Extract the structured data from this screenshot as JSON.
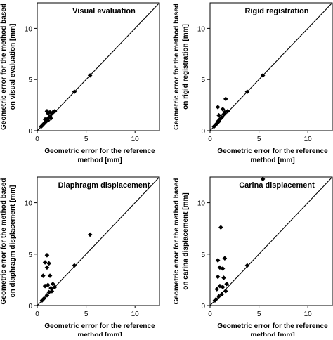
{
  "chart_data": [
    {
      "type": "scatter",
      "title": "Visual evaluation",
      "xlabel": [
        "Geometric error for the reference",
        "method [mm]"
      ],
      "ylabel": [
        "Geometric error for the method based",
        "on visual evaluation [mm]"
      ],
      "xlim": [
        0,
        12.5
      ],
      "ylim": [
        0,
        12.5
      ],
      "xticks": [
        0,
        5,
        10
      ],
      "yticks": [
        0,
        5,
        10
      ],
      "identity_line": true,
      "marker": "diamond",
      "points": [
        [
          5.4,
          5.4
        ],
        [
          3.8,
          3.8
        ],
        [
          1.8,
          1.9
        ],
        [
          1.6,
          1.8
        ],
        [
          1.5,
          1.7
        ],
        [
          1.0,
          1.9
        ],
        [
          1.1,
          1.7
        ],
        [
          1.3,
          1.8
        ],
        [
          0.8,
          1.1
        ],
        [
          1.0,
          1.1
        ],
        [
          1.2,
          1.3
        ],
        [
          0.9,
          0.9
        ],
        [
          0.7,
          0.7
        ],
        [
          0.6,
          0.6
        ],
        [
          0.5,
          0.5
        ],
        [
          0.4,
          0.4
        ],
        [
          1.4,
          1.2
        ],
        [
          1.1,
          1.0
        ],
        [
          0.8,
          0.8
        ],
        [
          1.3,
          1.4
        ]
      ]
    },
    {
      "type": "scatter",
      "title": "Rigid registration",
      "xlabel": [
        "Geometric error for the reference",
        "method [mm]"
      ],
      "ylabel": [
        "Geometric error for the method based",
        "on rigid registration [mm]"
      ],
      "xlim": [
        0,
        12.5
      ],
      "ylim": [
        0,
        12.5
      ],
      "xticks": [
        0,
        5,
        10
      ],
      "yticks": [
        0,
        5,
        10
      ],
      "identity_line": true,
      "marker": "diamond",
      "points": [
        [
          5.4,
          5.4
        ],
        [
          3.8,
          3.8
        ],
        [
          1.6,
          3.1
        ],
        [
          0.8,
          2.3
        ],
        [
          1.3,
          2.1
        ],
        [
          1.8,
          1.9
        ],
        [
          0.9,
          1.5
        ],
        [
          1.4,
          1.6
        ],
        [
          1.2,
          1.3
        ],
        [
          1.0,
          1.1
        ],
        [
          0.8,
          0.9
        ],
        [
          0.7,
          0.7
        ],
        [
          0.6,
          0.6
        ],
        [
          0.5,
          0.5
        ],
        [
          0.4,
          0.4
        ],
        [
          1.5,
          1.8
        ],
        [
          1.1,
          1.2
        ],
        [
          0.9,
          0.9
        ]
      ]
    },
    {
      "type": "scatter",
      "title": "Diaphragm displacement",
      "xlabel": [
        "Geometric error for the reference",
        "method [mm]"
      ],
      "ylabel": [
        "Geometric error for the method based",
        "on diaphragm displacement [mm]"
      ],
      "xlim": [
        0,
        12.5
      ],
      "ylim": [
        0,
        12.5
      ],
      "xticks": [
        0,
        5,
        10
      ],
      "yticks": [
        0,
        5,
        10
      ],
      "identity_line": true,
      "marker": "diamond",
      "points": [
        [
          5.4,
          6.9
        ],
        [
          3.8,
          3.9
        ],
        [
          1.0,
          4.9
        ],
        [
          0.8,
          4.2
        ],
        [
          1.2,
          4.1
        ],
        [
          1.0,
          3.7
        ],
        [
          1.3,
          2.9
        ],
        [
          0.6,
          2.9
        ],
        [
          1.6,
          2.1
        ],
        [
          1.1,
          2.0
        ],
        [
          0.8,
          1.9
        ],
        [
          1.4,
          1.7
        ],
        [
          1.8,
          1.8
        ],
        [
          1.2,
          1.3
        ],
        [
          1.0,
          1.0
        ],
        [
          0.7,
          0.7
        ],
        [
          0.5,
          0.5
        ],
        [
          1.5,
          1.4
        ]
      ]
    },
    {
      "type": "scatter",
      "title": "Carina displacement",
      "xlabel": [
        "Geometric error for the reference",
        "method [mm]"
      ],
      "ylabel": [
        "Geometric error for the method based",
        "on carina displacement [mm]"
      ],
      "xlim": [
        0,
        12.5
      ],
      "ylim": [
        0,
        12.5
      ],
      "xticks": [
        0,
        5,
        10
      ],
      "yticks": [
        0,
        5,
        10
      ],
      "identity_line": true,
      "marker": "diamond",
      "points": [
        [
          5.4,
          12.3
        ],
        [
          1.1,
          7.6
        ],
        [
          3.8,
          3.9
        ],
        [
          0.8,
          4.4
        ],
        [
          1.5,
          4.6
        ],
        [
          1.0,
          3.7
        ],
        [
          1.3,
          3.6
        ],
        [
          0.8,
          2.8
        ],
        [
          1.4,
          2.7
        ],
        [
          1.7,
          2.1
        ],
        [
          1.0,
          1.9
        ],
        [
          1.3,
          1.8
        ],
        [
          0.7,
          1.6
        ],
        [
          1.2,
          1.1
        ],
        [
          0.9,
          0.9
        ],
        [
          0.6,
          0.6
        ],
        [
          0.5,
          0.5
        ],
        [
          1.6,
          1.4
        ]
      ]
    }
  ]
}
